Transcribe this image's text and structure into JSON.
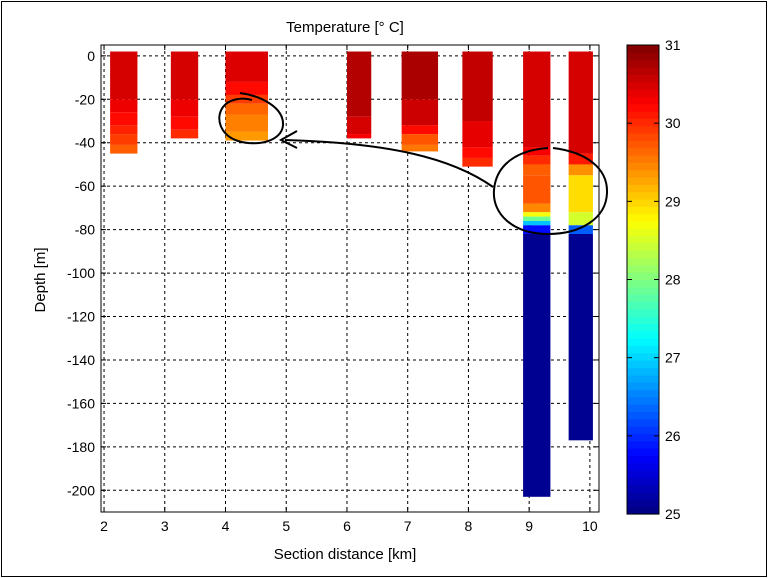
{
  "chart_data": {
    "type": "heatmap",
    "title": "Temperature [° C]",
    "xlabel": "Section distance [km]",
    "ylabel": "Depth [m]",
    "xlim": [
      1.95,
      10.15
    ],
    "ylim": [
      -210,
      5
    ],
    "xticks": [
      2,
      3,
      4,
      5,
      6,
      7,
      8,
      9,
      10
    ],
    "xtick_labels": [
      "2",
      "3",
      "4",
      "5",
      "6",
      "7",
      "8",
      "9",
      "10"
    ],
    "yticks": [
      0,
      -20,
      -40,
      -60,
      -80,
      -100,
      -120,
      -140,
      -160,
      -180,
      -200
    ],
    "ytick_labels": [
      "0",
      "-20",
      "-40",
      "-60",
      "-80",
      "-100",
      "-120",
      "-140",
      "-160",
      "-180",
      "-200"
    ],
    "grid": true,
    "colorbar": {
      "colormap": "jet",
      "range": [
        25,
        31
      ],
      "ticks": [
        25,
        26,
        27,
        28,
        29,
        30,
        31
      ],
      "tick_labels": [
        "25",
        "26",
        "27",
        "28",
        "29",
        "30",
        "31"
      ]
    },
    "stations": [
      {
        "x0": 2.1,
        "x1": 2.55,
        "segments": [
          [
            2,
            -20,
            30.5
          ],
          [
            -20,
            -26,
            30.35
          ],
          [
            -26,
            -32,
            30.2
          ],
          [
            -32,
            -36,
            30.05
          ],
          [
            -36,
            -41,
            29.9
          ],
          [
            -41,
            -45,
            29.7
          ]
        ]
      },
      {
        "x0": 3.1,
        "x1": 3.55,
        "segments": [
          [
            2,
            -20,
            30.5
          ],
          [
            -20,
            -28,
            30.35
          ],
          [
            -28,
            -34,
            30.2
          ],
          [
            -34,
            -38,
            30.0
          ]
        ]
      },
      {
        "x0": 4.0,
        "x1": 4.7,
        "segments": [
          [
            2,
            -12,
            30.45
          ],
          [
            -12,
            -18,
            30.2
          ],
          [
            -18,
            -22,
            29.9
          ],
          [
            -22,
            -27,
            29.65
          ],
          [
            -27,
            -35,
            29.5
          ],
          [
            -35,
            -39,
            29.35
          ]
        ]
      },
      {
        "x0": 6.0,
        "x1": 6.4,
        "segments": [
          [
            2,
            -28,
            30.7
          ],
          [
            -28,
            -36,
            30.5
          ],
          [
            -36,
            -38,
            30.3
          ]
        ]
      },
      {
        "x0": 6.9,
        "x1": 7.5,
        "segments": [
          [
            2,
            -20,
            30.75
          ],
          [
            -20,
            -32,
            30.55
          ],
          [
            -32,
            -36,
            30.2
          ],
          [
            -36,
            -41,
            29.75
          ],
          [
            -41,
            -44,
            29.55
          ]
        ]
      },
      {
        "x0": 7.9,
        "x1": 8.4,
        "segments": [
          [
            2,
            -30,
            30.6
          ],
          [
            -30,
            -42,
            30.4
          ],
          [
            -42,
            -47,
            30.2
          ],
          [
            -47,
            -51,
            30.0
          ]
        ]
      },
      {
        "x0": 8.9,
        "x1": 9.35,
        "segments": [
          [
            2,
            -42,
            30.5
          ],
          [
            -42,
            -46,
            30.3
          ],
          [
            -46,
            -50,
            30.0
          ],
          [
            -50,
            -55,
            29.7
          ],
          [
            -55,
            -68,
            29.75
          ],
          [
            -68,
            -72,
            29.45
          ],
          [
            -72,
            -74,
            28.7
          ],
          [
            -74,
            -76,
            27.9
          ],
          [
            -76,
            -78,
            26.9
          ],
          [
            -78,
            -82,
            25.8
          ],
          [
            -82,
            -203,
            25.1
          ]
        ]
      },
      {
        "x0": 9.65,
        "x1": 10.05,
        "segments": [
          [
            2,
            -45,
            30.5
          ],
          [
            -45,
            -50,
            30.1
          ],
          [
            -50,
            -55,
            29.4
          ],
          [
            -55,
            -72,
            28.95
          ],
          [
            -72,
            -78,
            28.5
          ],
          [
            -78,
            -82,
            26.3
          ],
          [
            -82,
            -177,
            25.1
          ]
        ]
      }
    ]
  }
}
